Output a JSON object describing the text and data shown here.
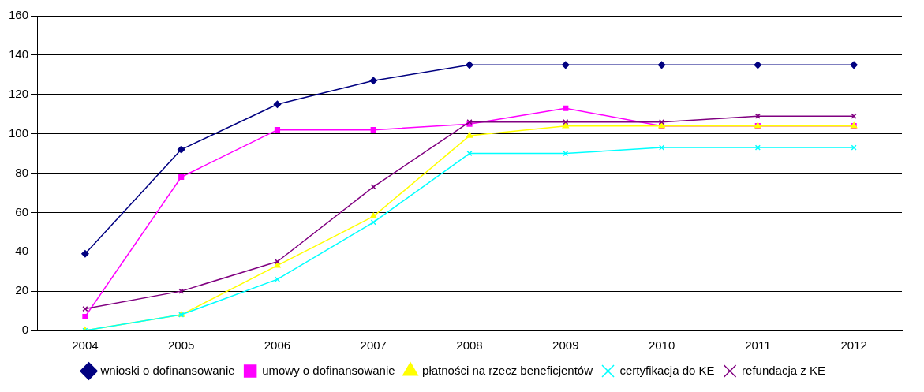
{
  "chart_data": {
    "type": "line",
    "categories": [
      "2004",
      "2005",
      "2006",
      "2007",
      "2008",
      "2009",
      "2010",
      "2011",
      "2012"
    ],
    "series": [
      {
        "name": "wnioski o dofinansowanie",
        "color": "#000080",
        "marker": "diamond",
        "values": [
          39,
          92,
          115,
          127,
          135,
          135,
          135,
          135,
          135
        ]
      },
      {
        "name": "umowy o dofinansowanie",
        "color": "#ff00ff",
        "marker": "square",
        "values": [
          7,
          78,
          102,
          102,
          105,
          113,
          104,
          104,
          104
        ]
      },
      {
        "name": "płatności na rzecz beneficjentów",
        "color": "#ffff00",
        "marker": "triangle",
        "values": [
          0,
          8,
          33,
          58,
          99,
          104,
          104,
          104,
          104
        ]
      },
      {
        "name": "certyfikacja do KE",
        "color": "#00ffff",
        "marker": "cross",
        "values": [
          0,
          8,
          26,
          55,
          90,
          90,
          93,
          93,
          93
        ]
      },
      {
        "name": "refundacja z KE",
        "color": "#800080",
        "marker": "cross",
        "values": [
          11,
          20,
          35,
          73,
          106,
          106,
          106,
          109,
          109
        ]
      }
    ],
    "ylim": [
      0,
      160
    ],
    "yticks": [
      0,
      20,
      40,
      60,
      80,
      100,
      120,
      140,
      160
    ],
    "grid": "y",
    "legend": "bottom",
    "line_style": "solid"
  }
}
